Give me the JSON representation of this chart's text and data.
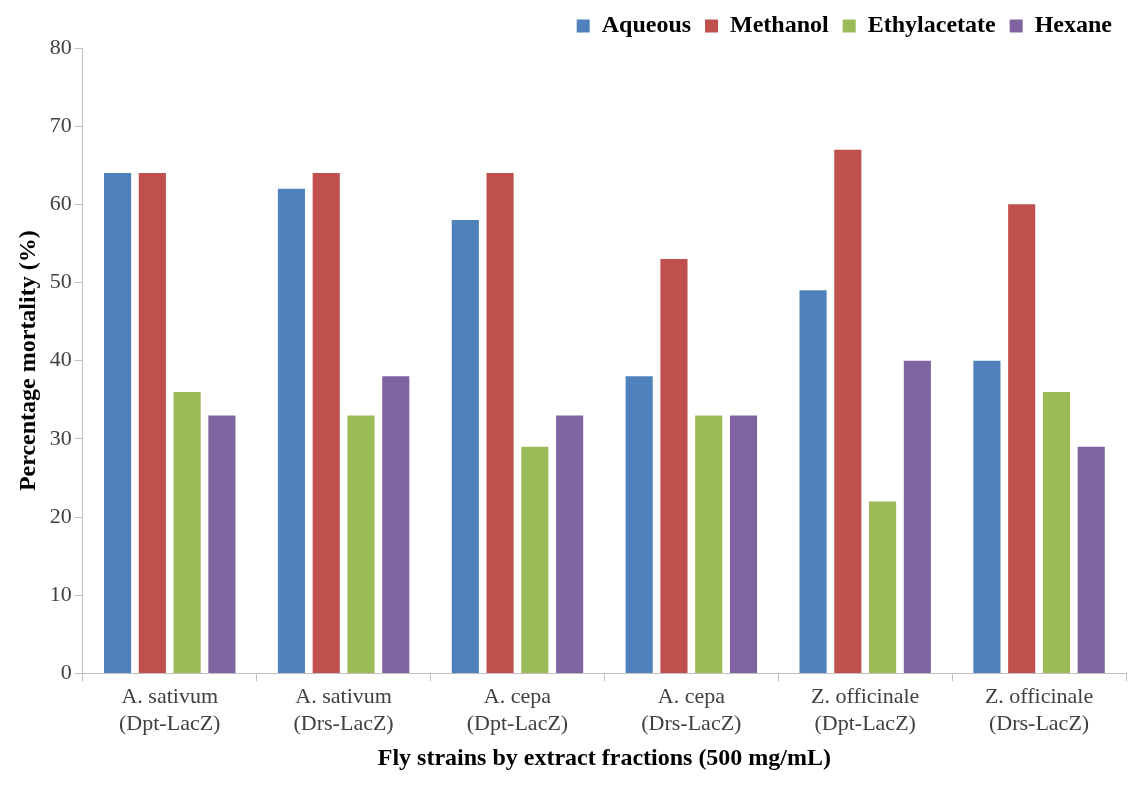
{
  "chart_data": {
    "type": "bar",
    "xlabel": "Fly strains by extract fractions (500 mg/mL)",
    "ylabel": "Percentage mortality (%)",
    "categories": [
      "A. sativum\n(Dpt-LacZ)",
      "A. sativum\n(Drs-LacZ)",
      "A. cepa\n(Dpt-LacZ)",
      "A. cepa\n(Drs-LacZ)",
      "Z. officinale\n(Dpt-LacZ)",
      "Z. officinale\n(Drs-LacZ)"
    ],
    "series": [
      {
        "name": "Aqueous",
        "color": "#4f81bd",
        "values": [
          64,
          62,
          58,
          38,
          49,
          40
        ]
      },
      {
        "name": "Methanol",
        "color": "#c0504d",
        "values": [
          64,
          64,
          64,
          53,
          67,
          60
        ]
      },
      {
        "name": "Ethylacetate",
        "color": "#9bbb59",
        "values": [
          36,
          33,
          29,
          33,
          22,
          36
        ]
      },
      {
        "name": "Hexane",
        "color": "#8064a2",
        "values": [
          33,
          38,
          33,
          33,
          40,
          29
        ]
      }
    ],
    "ylim": [
      0,
      80
    ],
    "yticks": [
      0,
      10,
      20,
      30,
      40,
      50,
      60,
      70,
      80
    ],
    "legend": "top right"
  }
}
